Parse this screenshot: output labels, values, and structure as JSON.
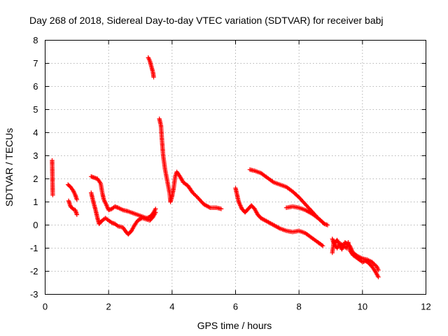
{
  "chart_data": {
    "type": "scatter",
    "title": "Day 268 of 2018, Sidereal Day-to-day VTEC variation (SDTVAR) for receiver babj",
    "xlabel": "GPS time / hours",
    "ylabel": "SDTVAR / TECUs",
    "xlim": [
      0,
      12
    ],
    "ylim": [
      -3,
      8
    ],
    "xticks": [
      "0",
      "2",
      "4",
      "6",
      "8",
      "10",
      "12"
    ],
    "yticks": [
      "-3",
      "-2",
      "-1",
      "0",
      "1",
      "2",
      "3",
      "4",
      "5",
      "6",
      "7",
      "8"
    ],
    "grid": true,
    "marker": "+",
    "color": "#ff0000",
    "series": [
      {
        "name": "SDTVAR",
        "segments": [
          [
            [
              0.22,
              2.8
            ],
            [
              0.24,
              1.3
            ]
          ],
          [
            [
              0.72,
              1.75
            ],
            [
              0.8,
              1.65
            ],
            [
              0.88,
              1.5
            ],
            [
              0.95,
              1.3
            ],
            [
              1.0,
              1.1
            ]
          ],
          [
            [
              0.74,
              1.05
            ],
            [
              0.8,
              0.8
            ],
            [
              0.88,
              0.7
            ],
            [
              0.95,
              0.65
            ],
            [
              1.0,
              0.45
            ]
          ],
          [
            [
              1.45,
              2.1
            ],
            [
              1.55,
              2.05
            ],
            [
              1.65,
              2.0
            ],
            [
              1.75,
              1.8
            ],
            [
              1.8,
              1.4
            ],
            [
              1.85,
              1.1
            ],
            [
              1.92,
              0.9
            ],
            [
              2.0,
              0.65
            ],
            [
              2.1,
              0.7
            ],
            [
              2.2,
              0.8
            ],
            [
              2.3,
              0.75
            ],
            [
              2.45,
              0.65
            ],
            [
              2.6,
              0.6
            ],
            [
              2.8,
              0.5
            ],
            [
              3.0,
              0.4
            ],
            [
              3.2,
              0.3
            ],
            [
              3.3,
              0.35
            ],
            [
              3.4,
              0.5
            ],
            [
              3.48,
              0.7
            ]
          ],
          [
            [
              1.45,
              1.4
            ],
            [
              1.52,
              1.0
            ],
            [
              1.58,
              0.7
            ],
            [
              1.65,
              0.3
            ],
            [
              1.7,
              0.05
            ],
            [
              1.8,
              0.2
            ],
            [
              1.9,
              0.3
            ],
            [
              2.0,
              0.2
            ],
            [
              2.1,
              0.1
            ],
            [
              2.2,
              0.05
            ],
            [
              2.3,
              -0.05
            ],
            [
              2.45,
              -0.1
            ],
            [
              2.55,
              -0.3
            ],
            [
              2.62,
              -0.4
            ],
            [
              2.72,
              -0.25
            ],
            [
              2.82,
              0.0
            ],
            [
              2.92,
              0.2
            ],
            [
              3.05,
              0.3
            ],
            [
              3.18,
              0.25
            ],
            [
              3.3,
              0.2
            ],
            [
              3.4,
              0.35
            ],
            [
              3.48,
              0.55
            ]
          ],
          [
            [
              3.25,
              7.25
            ],
            [
              3.3,
              7.1
            ],
            [
              3.35,
              6.85
            ],
            [
              3.4,
              6.6
            ],
            [
              3.42,
              6.4
            ]
          ],
          [
            [
              3.6,
              4.6
            ],
            [
              3.65,
              4.3
            ],
            [
              3.68,
              3.7
            ],
            [
              3.72,
              3.0
            ],
            [
              3.78,
              2.4
            ],
            [
              3.85,
              1.9
            ],
            [
              3.92,
              1.4
            ],
            [
              3.95,
              1.0
            ],
            [
              4.0,
              1.25
            ],
            [
              4.05,
              1.6
            ],
            [
              4.1,
              2.1
            ],
            [
              4.15,
              2.3
            ],
            [
              4.25,
              2.1
            ],
            [
              4.35,
              1.85
            ],
            [
              4.5,
              1.7
            ],
            [
              4.65,
              1.4
            ],
            [
              4.8,
              1.2
            ],
            [
              5.0,
              0.9
            ],
            [
              5.2,
              0.75
            ],
            [
              5.4,
              0.75
            ],
            [
              5.55,
              0.7
            ]
          ],
          [
            [
              6.0,
              1.6
            ],
            [
              6.05,
              1.3
            ],
            [
              6.1,
              1.0
            ],
            [
              6.2,
              0.7
            ],
            [
              6.3,
              0.55
            ],
            [
              6.4,
              0.7
            ],
            [
              6.5,
              0.85
            ],
            [
              6.6,
              0.7
            ],
            [
              6.7,
              0.45
            ],
            [
              6.8,
              0.3
            ],
            [
              7.0,
              0.15
            ],
            [
              7.2,
              0.0
            ],
            [
              7.4,
              -0.15
            ],
            [
              7.6,
              -0.25
            ],
            [
              7.8,
              -0.3
            ],
            [
              8.0,
              -0.25
            ],
            [
              8.2,
              -0.35
            ],
            [
              8.4,
              -0.55
            ],
            [
              8.6,
              -0.75
            ],
            [
              8.75,
              -0.9
            ]
          ],
          [
            [
              6.45,
              2.4
            ],
            [
              6.6,
              2.35
            ],
            [
              6.8,
              2.25
            ],
            [
              7.0,
              2.05
            ],
            [
              7.2,
              1.85
            ],
            [
              7.4,
              1.75
            ],
            [
              7.6,
              1.65
            ],
            [
              7.8,
              1.45
            ],
            [
              8.0,
              1.2
            ],
            [
              8.2,
              0.9
            ],
            [
              8.4,
              0.6
            ],
            [
              8.6,
              0.3
            ],
            [
              8.8,
              0.05
            ],
            [
              8.9,
              0.0
            ]
          ],
          [
            [
              7.6,
              0.75
            ],
            [
              7.8,
              0.8
            ],
            [
              8.0,
              0.75
            ],
            [
              8.2,
              0.65
            ],
            [
              8.4,
              0.5
            ],
            [
              8.6,
              0.3
            ],
            [
              8.8,
              0.05
            ]
          ],
          [
            [
              9.05,
              -1.2
            ],
            [
              9.1,
              -0.7
            ],
            [
              9.15,
              -0.9
            ],
            [
              9.2,
              -1.0
            ],
            [
              9.3,
              -0.8
            ],
            [
              9.4,
              -0.9
            ],
            [
              9.5,
              -1.0
            ],
            [
              9.55,
              -0.75
            ],
            [
              9.6,
              -1.1
            ],
            [
              9.7,
              -1.3
            ],
            [
              9.8,
              -1.4
            ],
            [
              9.9,
              -1.5
            ],
            [
              10.0,
              -1.6
            ],
            [
              10.1,
              -1.55
            ],
            [
              10.2,
              -1.65
            ],
            [
              10.3,
              -1.8
            ],
            [
              10.4,
              -2.0
            ],
            [
              10.5,
              -2.25
            ]
          ],
          [
            [
              9.05,
              -0.6
            ],
            [
              9.1,
              -0.8
            ],
            [
              9.2,
              -0.65
            ],
            [
              9.35,
              -1.05
            ],
            [
              9.45,
              -0.75
            ],
            [
              9.6,
              -0.9
            ],
            [
              9.7,
              -1.2
            ],
            [
              9.85,
              -1.35
            ],
            [
              10.0,
              -1.45
            ],
            [
              10.15,
              -1.5
            ],
            [
              10.3,
              -1.6
            ],
            [
              10.45,
              -1.8
            ],
            [
              10.5,
              -1.95
            ]
          ]
        ]
      }
    ]
  }
}
